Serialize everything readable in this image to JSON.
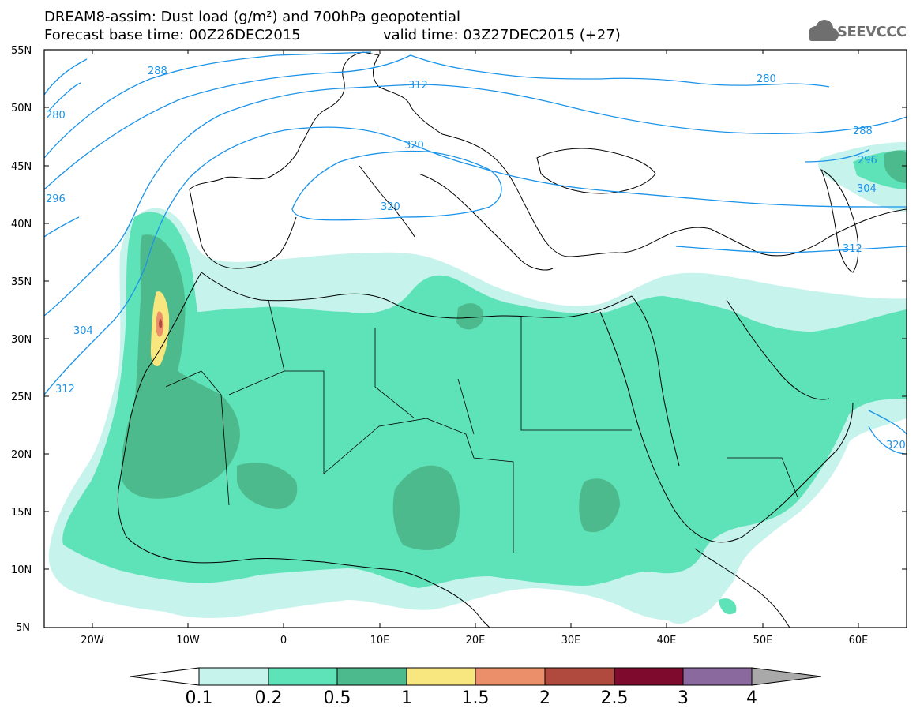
{
  "title": {
    "line1": "DREAM8-assim: Dust load (g/m²) and 700hPa geopotential",
    "line2a": "Forecast base time: 00Z26DEC2015",
    "line2b": "valid time: 03Z27DEC2015 (+27)"
  },
  "logo": {
    "text": "SEEVCCC",
    "icon": "cloud-icon"
  },
  "axes": {
    "lat_labels": [
      "55N",
      "50N",
      "45N",
      "40N",
      "35N",
      "30N",
      "25N",
      "20N",
      "15N",
      "10N",
      "5N"
    ],
    "lon_labels": [
      "20W",
      "10W",
      "0",
      "10E",
      "20E",
      "30E",
      "40E",
      "50E",
      "60E"
    ]
  },
  "contour_labels": [
    "288",
    "280",
    "312",
    "280",
    "320",
    "288",
    "296",
    "320",
    "304",
    "296",
    "304",
    "312",
    "312",
    "320"
  ],
  "colorbar": {
    "ticks": [
      "0.1",
      "0.2",
      "0.5",
      "1",
      "1.5",
      "2",
      "2.5",
      "3",
      "4"
    ],
    "colors": [
      "#c6f3ec",
      "#5ee2b8",
      "#4dba8e",
      "#f7e77e",
      "#ea8f6a",
      "#b0493e",
      "#7e0a2e",
      "#8a6a9e",
      "#a9a9a9"
    ]
  },
  "colors": {
    "contour": "#1a93e8",
    "coastline": "#000000",
    "dust_01": "#c6f3ec",
    "dust_02": "#5ee2b8",
    "dust_05": "#4dba8e",
    "dust_1": "#f7e77e",
    "dust_15": "#ea8f6a",
    "dust_2": "#b0493e"
  }
}
